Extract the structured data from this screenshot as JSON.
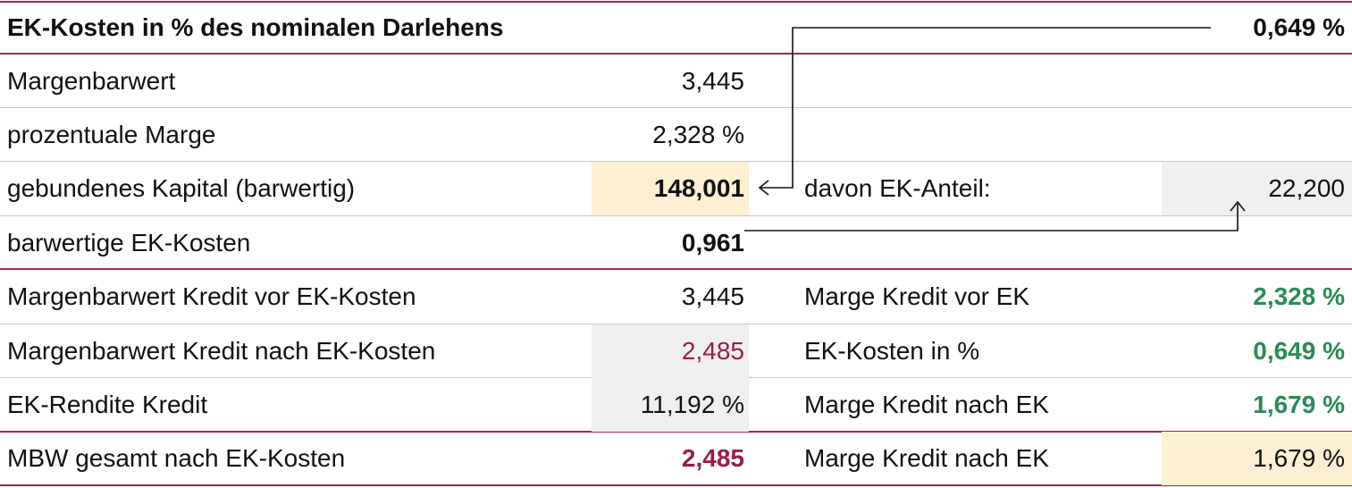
{
  "header": {
    "title": "EK-Kosten in % des nominalen Darlehens",
    "value": "0,649 %"
  },
  "rows": [
    {
      "label": "Margenbarwert",
      "value": "3,445"
    },
    {
      "label": "prozentuale Marge",
      "value": "2,328 %"
    },
    {
      "label": "gebundenes Kapital (barwertig)",
      "value": "148,001",
      "right_label": "davon EK-Anteil:",
      "right_value": "22,200"
    },
    {
      "label": "barwertige EK-Kosten",
      "value": "0,961"
    },
    {
      "label": "Margenbarwert Kredit vor EK-Kosten",
      "value": "3,445",
      "right_label": "Marge Kredit vor EK",
      "right_value": "2,328 %"
    },
    {
      "label": "Margenbarwert Kredit nach EK-Kosten",
      "value": "2,485",
      "right_label": "EK-Kosten in %",
      "right_value": "0,649 %"
    },
    {
      "label": "EK-Rendite Kredit",
      "value": "11,192 %",
      "right_label": "Marge Kredit nach EK",
      "right_value": "1,679 %"
    },
    {
      "label": "MBW gesamt nach EK-Kosten",
      "value": "2,485",
      "right_label": "Marge Kredit nach EK",
      "right_value": "1,679 %"
    }
  ]
}
